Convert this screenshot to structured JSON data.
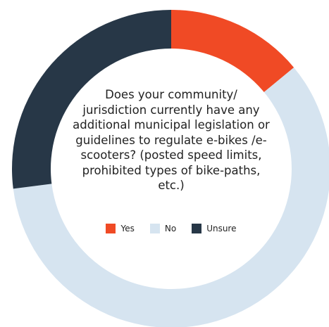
{
  "chart_data": {
    "type": "donut",
    "title": "Does your community/ jurisdiction currently have any additional municipal legislation or guidelines to regulate e-bikes /e-scooters? (posted speed limits, prohibited types of bike-paths, etc.)",
    "categories": [
      "Yes",
      "No",
      "Unsure"
    ],
    "values": [
      14,
      59,
      27
    ],
    "colors": [
      "#f04a25",
      "#d6e4f0",
      "#273747"
    ],
    "legend": "center"
  }
}
